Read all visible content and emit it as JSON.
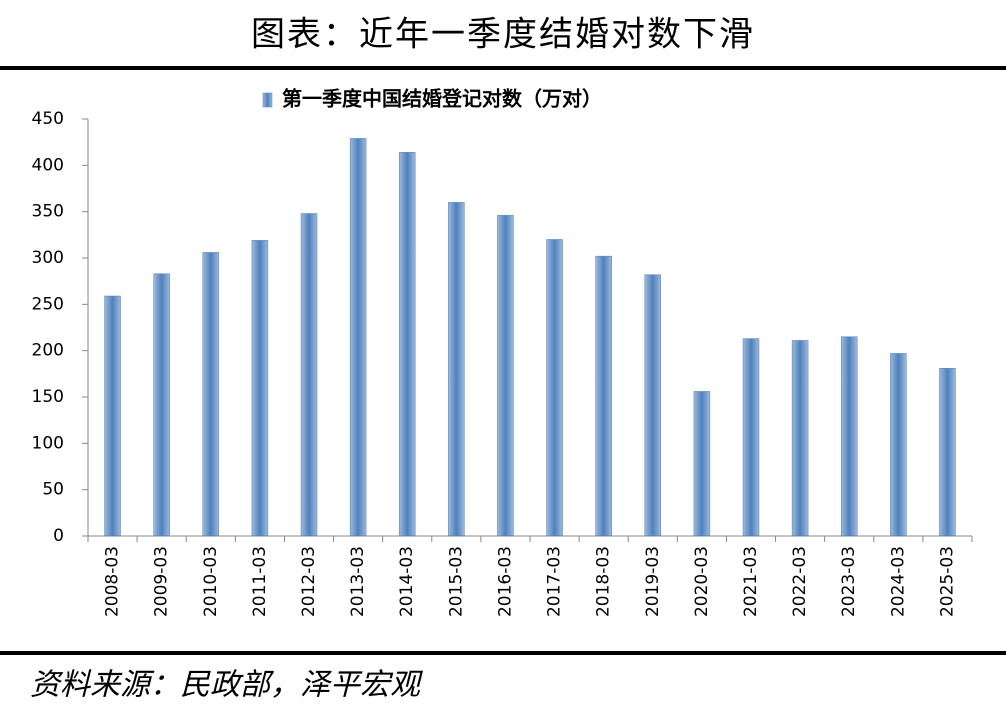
{
  "chart_data": {
    "type": "bar",
    "title": "图表：近年一季度结婚对数下滑",
    "source": "资料来源：民政部，泽平宏观",
    "categories": [
      "2008-03",
      "2009-03",
      "2010-03",
      "2011-03",
      "2012-03",
      "2013-03",
      "2014-03",
      "2015-03",
      "2016-03",
      "2017-03",
      "2018-03",
      "2019-03",
      "2020-03",
      "2021-03",
      "2022-03",
      "2023-03",
      "2024-03",
      "2025-03"
    ],
    "series": [
      {
        "name": "第一季度中国结婚登记对数（万对）",
        "color": "#4f81bd",
        "values": [
          259,
          283,
          306,
          319,
          348,
          429,
          414,
          360,
          346,
          320,
          302,
          282,
          156,
          213,
          211,
          215,
          197,
          181
        ]
      }
    ],
    "ylim": [
      0,
      450
    ],
    "yticks": [
      0,
      50,
      100,
      150,
      200,
      250,
      300,
      350,
      400,
      450
    ],
    "grid": false
  }
}
